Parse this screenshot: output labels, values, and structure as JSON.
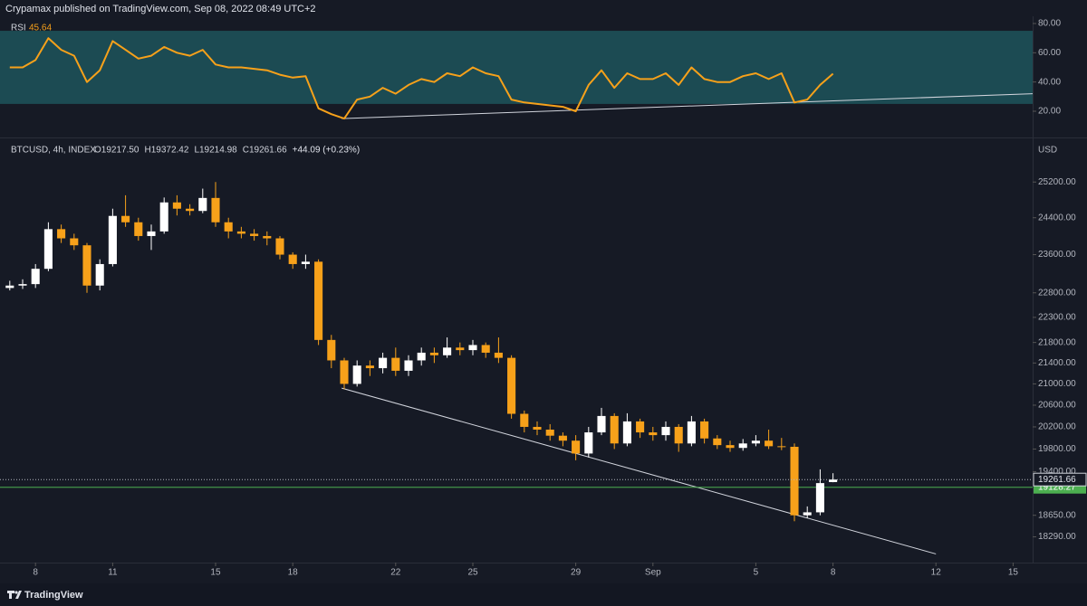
{
  "header": {
    "text": "Crypamax published on TradingView.com, Sep 08, 2022 08:49 UTC+2"
  },
  "footer": {
    "logo": "TradingView"
  },
  "chart_data": [
    {
      "type": "line",
      "name": "RSI",
      "color": "#f7a11a",
      "band": [
        25,
        75
      ],
      "band_color": "#1c4b53",
      "xlim": [
        -1.38,
        38.76
      ],
      "ylim": [
        3.3,
        83.7
      ],
      "yticks": [
        {
          "value": 80,
          "label": "80.00"
        },
        {
          "value": 60,
          "label": "60.00"
        },
        {
          "value": 40,
          "label": "40.00"
        },
        {
          "value": 20,
          "label": "20.00"
        }
      ],
      "x": [
        -1,
        -0.5,
        0,
        0.5,
        1,
        1.5,
        2,
        2.5,
        3,
        3.5,
        4,
        4.5,
        5,
        5.5,
        6,
        6.5,
        7,
        7.5,
        8,
        8.5,
        9,
        9.5,
        10,
        10.5,
        11,
        11.5,
        12,
        12.5,
        13,
        13.5,
        14,
        14.5,
        15,
        15.5,
        16,
        16.5,
        17,
        17.5,
        18,
        18.5,
        19,
        19.5,
        20,
        20.5,
        21,
        21.5,
        22,
        22.5,
        23,
        23.5,
        24,
        24.5,
        25,
        25.5,
        26,
        26.5,
        27,
        27.5,
        28,
        28.5,
        29,
        29.5,
        30,
        30.5,
        31
      ],
      "values": [
        50,
        50,
        55,
        70,
        62,
        58,
        40,
        48,
        68,
        62,
        56,
        58,
        64,
        60,
        58,
        62,
        52,
        50,
        50,
        49,
        48,
        45,
        43,
        44,
        22,
        18,
        15,
        28,
        30,
        36,
        32,
        38,
        42,
        40,
        46,
        44,
        50,
        46,
        44,
        28,
        26,
        25,
        24,
        23,
        20,
        38,
        48,
        36,
        46,
        42,
        42,
        46,
        38,
        50,
        42,
        40,
        40,
        44,
        46,
        42,
        46,
        26,
        28,
        38,
        45.64
      ],
      "trendline": {
        "x": [
          11.9,
          38.76
        ],
        "y": [
          15,
          32
        ]
      }
    },
    {
      "type": "candlestick",
      "title": "BTCUSD, 4h, INDEX",
      "ohlc_labels": [
        "O19217.50",
        "H19372.42",
        "L19214.98",
        "C19261.66",
        "+44.09 (+0.23%)"
      ],
      "unit": "USD",
      "log": true,
      "up_color": "#ffffff",
      "down_color": "#f7a11a",
      "xlim": [
        -1.38,
        38.76
      ],
      "ylim": [
        17870,
        26170
      ],
      "yticks": [
        {
          "value": 25200,
          "label": "25200.00"
        },
        {
          "value": 24400,
          "label": "24400.00"
        },
        {
          "value": 23600,
          "label": "23600.00"
        },
        {
          "value": 22800,
          "label": "22800.00"
        },
        {
          "value": 22300,
          "label": "22300.00"
        },
        {
          "value": 21800,
          "label": "21800.00"
        },
        {
          "value": 21400,
          "label": "21400.00"
        },
        {
          "value": 21000,
          "label": "21000.00"
        },
        {
          "value": 20600,
          "label": "20600.00"
        },
        {
          "value": 20200,
          "label": "20200.00"
        },
        {
          "value": 19800,
          "label": "19800.00"
        },
        {
          "value": 19400,
          "label": "19400.00"
        },
        {
          "value": 18650,
          "label": "18650.00"
        },
        {
          "value": 18290,
          "label": "18290.00"
        }
      ],
      "xticks": [
        {
          "value": 0,
          "label": "8"
        },
        {
          "value": 3,
          "label": "11"
        },
        {
          "value": 7,
          "label": "15"
        },
        {
          "value": 10,
          "label": "18"
        },
        {
          "value": 14,
          "label": "22"
        },
        {
          "value": 17,
          "label": "25"
        },
        {
          "value": 21,
          "label": "29"
        },
        {
          "value": 24,
          "label": "Sep"
        },
        {
          "value": 28,
          "label": "5"
        },
        {
          "value": 31,
          "label": "8"
        },
        {
          "value": 35,
          "label": "12"
        },
        {
          "value": 38,
          "label": "15"
        }
      ],
      "x": [
        -1,
        -0.5,
        0,
        0.5,
        1,
        1.5,
        2,
        2.5,
        3,
        3.5,
        4,
        4.5,
        5,
        5.5,
        6,
        6.5,
        7,
        7.5,
        8,
        8.5,
        9,
        9.5,
        10,
        10.5,
        11,
        11.5,
        12,
        12.5,
        13,
        13.5,
        14,
        14.5,
        15,
        15.5,
        16,
        16.5,
        17,
        17.5,
        18,
        18.5,
        19,
        19.5,
        20,
        20.5,
        21,
        21.5,
        22,
        22.5,
        23,
        23.5,
        24,
        24.5,
        25,
        25.5,
        26,
        26.5,
        27,
        27.5,
        28,
        28.5,
        29,
        29.5,
        30,
        30.5,
        31
      ],
      "open": [
        22900,
        22950,
        22980,
        23300,
        24150,
        23950,
        23800,
        22950,
        23400,
        24440,
        24300,
        24000,
        24100,
        24740,
        24600,
        24550,
        24840,
        24300,
        24100,
        24050,
        24000,
        23950,
        23600,
        23400,
        23450,
        21850,
        21450,
        21000,
        21350,
        21300,
        21500,
        21250,
        21450,
        21600,
        21550,
        21700,
        21650,
        21750,
        21600,
        21500,
        20440,
        20200,
        20150,
        20040,
        19950,
        19720,
        20100,
        20400,
        19900,
        20300,
        20100,
        20050,
        20200,
        19900,
        20300,
        19990,
        19870,
        19820,
        19900,
        19950,
        19850,
        19840,
        18650,
        18700,
        19217.5
      ],
      "high": [
        23050,
        23080,
        23400,
        24300,
        24250,
        24050,
        23850,
        23500,
        24600,
        24900,
        24400,
        24250,
        24850,
        24900,
        24700,
        25050,
        25200,
        24400,
        24200,
        24150,
        24100,
        24000,
        23650,
        23600,
        23500,
        21950,
        21500,
        21450,
        21450,
        21600,
        21700,
        21550,
        21700,
        21700,
        21900,
        21800,
        21850,
        21800,
        21900,
        21550,
        20500,
        20300,
        20250,
        20100,
        20050,
        20200,
        20550,
        20450,
        20450,
        20350,
        20200,
        20300,
        20250,
        20400,
        20350,
        20050,
        19950,
        19980,
        20050,
        20150,
        20000,
        19900,
        18800,
        19440,
        19372.42
      ],
      "low": [
        22850,
        22880,
        22900,
        23250,
        23850,
        23700,
        22800,
        22850,
        23350,
        24200,
        23900,
        23700,
        24050,
        24450,
        24450,
        24500,
        24200,
        23950,
        23950,
        23900,
        23800,
        23500,
        23300,
        23300,
        21750,
        21300,
        20900,
        20950,
        21150,
        21200,
        21150,
        21150,
        21350,
        21400,
        21500,
        21550,
        21550,
        21500,
        21400,
        20350,
        20100,
        20050,
        19950,
        19850,
        19600,
        19650,
        20050,
        19800,
        19850,
        20000,
        19950,
        19950,
        19750,
        19850,
        19900,
        19800,
        19750,
        19770,
        19850,
        19800,
        19780,
        18550,
        18600,
        18650,
        19214.98
      ],
      "close": [
        22950,
        22980,
        23300,
        24150,
        23950,
        23800,
        22950,
        23400,
        24440,
        24300,
        24000,
        24100,
        24740,
        24600,
        24550,
        24840,
        24300,
        24100,
        24050,
        24000,
        23950,
        23600,
        23400,
        23450,
        21850,
        21450,
        21000,
        21350,
        21300,
        21500,
        21250,
        21450,
        21600,
        21550,
        21700,
        21650,
        21750,
        21600,
        21500,
        20440,
        20200,
        20150,
        20040,
        19950,
        19720,
        20100,
        20400,
        19900,
        20300,
        20100,
        20050,
        20200,
        19900,
        20300,
        19990,
        19870,
        19820,
        19900,
        19950,
        19850,
        19840,
        18650,
        18700,
        19200,
        19261.66
      ],
      "hline": {
        "value": 19128.27,
        "color": "#4caf50"
      },
      "trendline": {
        "x": [
          11.9,
          35
        ],
        "y": [
          20920,
          18010
        ]
      }
    }
  ]
}
